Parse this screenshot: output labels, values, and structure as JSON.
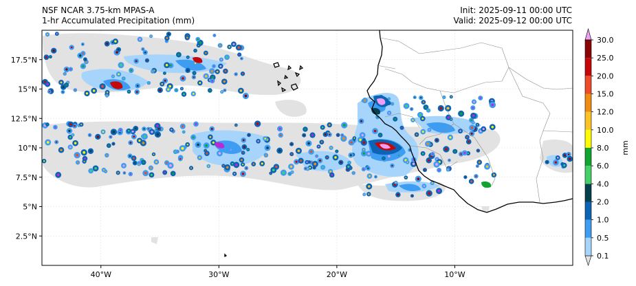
{
  "header": {
    "model": "NSF NCAR 3.75-km MPAS-A",
    "field": "1-hr Accumulated Precipitation (mm)",
    "init": "Init: 2025-09-11 00:00 UTC",
    "valid": "Valid: 2025-09-12 00:00 UTC"
  },
  "map": {
    "lon_range": [
      -45,
      0
    ],
    "lat_range": [
      0,
      20
    ],
    "x_ticks": [
      {
        "lon": -40,
        "label": "40°W"
      },
      {
        "lon": -30,
        "label": "30°W"
      },
      {
        "lon": -20,
        "label": "20°W"
      },
      {
        "lon": -10,
        "label": "10°W"
      }
    ],
    "y_ticks": [
      {
        "lat": 2.5,
        "label": "2.5°N"
      },
      {
        "lat": 5,
        "label": "5°N"
      },
      {
        "lat": 7.5,
        "label": "7.5°N"
      },
      {
        "lat": 10,
        "label": "10°N"
      },
      {
        "lat": 12.5,
        "label": "12.5°N"
      },
      {
        "lat": 15,
        "label": "15°N"
      },
      {
        "lat": 17.5,
        "label": "17.5°N"
      }
    ]
  },
  "colorbar": {
    "unit": "mm",
    "levels": [
      "0.1",
      "0.5",
      "1.0",
      "2.0",
      "4.0",
      "6.0",
      "8.0",
      "10.0",
      "12.0",
      "15.0",
      "20.0",
      "25.0",
      "30.0"
    ],
    "colors": [
      "#e2e2e2",
      "#a6d4fb",
      "#3e9df2",
      "#0b64b5",
      "#05404f",
      "#46d06a",
      "#11a431",
      "#fffb06",
      "#fbc426",
      "#ef8c14",
      "#ed4c2a",
      "#c50709",
      "#8a0505",
      "#b92ad5",
      "#ec9ff4"
    ]
  }
}
